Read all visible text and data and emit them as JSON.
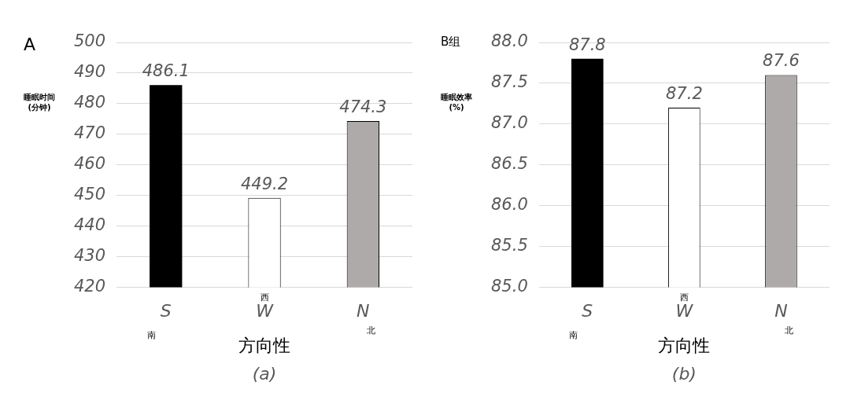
{
  "chart_data": [
    {
      "type": "bar",
      "title": "A",
      "ylabel": "睡眠时间\n(分钟)",
      "xlabel": "方向性",
      "categories": [
        "S",
        "W",
        "N"
      ],
      "values": [
        486.1,
        449.2,
        474.3
      ],
      "colors": [
        "#000000",
        "#ffffff",
        "#aeaaaa"
      ],
      "ylim": [
        420,
        500
      ],
      "yticks": [
        420,
        430,
        440,
        450,
        460,
        470,
        480,
        490,
        500
      ],
      "grid": "y",
      "data_labels": true,
      "legend": false,
      "annotations": [
        "南",
        "西",
        "北",
        "(a)"
      ]
    },
    {
      "type": "bar",
      "title": "B组",
      "ylabel": "睡眠效率\n(%)",
      "xlabel": "方向性",
      "categories": [
        "S",
        "W",
        "N"
      ],
      "values": [
        87.8,
        87.2,
        87.6
      ],
      "colors": [
        "#000000",
        "#ffffff",
        "#aeaaaa"
      ],
      "ylim": [
        85.0,
        88.0
      ],
      "yticks": [
        {
          "value": 85,
          "label": "85.0"
        },
        {
          "value": 85.5,
          "label": "85.5"
        },
        {
          "value": 86,
          "label": "86.0"
        },
        {
          "value": 86.5,
          "label": "86.5"
        },
        {
          "value": 87,
          "label": "87.0"
        },
        {
          "value": 87.5,
          "label": "87.5"
        },
        {
          "value": 88,
          "label": "88.0"
        }
      ],
      "grid": "y",
      "data_labels": true,
      "legend": false,
      "annotations": [
        "南",
        "西",
        "北",
        "(b)"
      ]
    }
  ]
}
